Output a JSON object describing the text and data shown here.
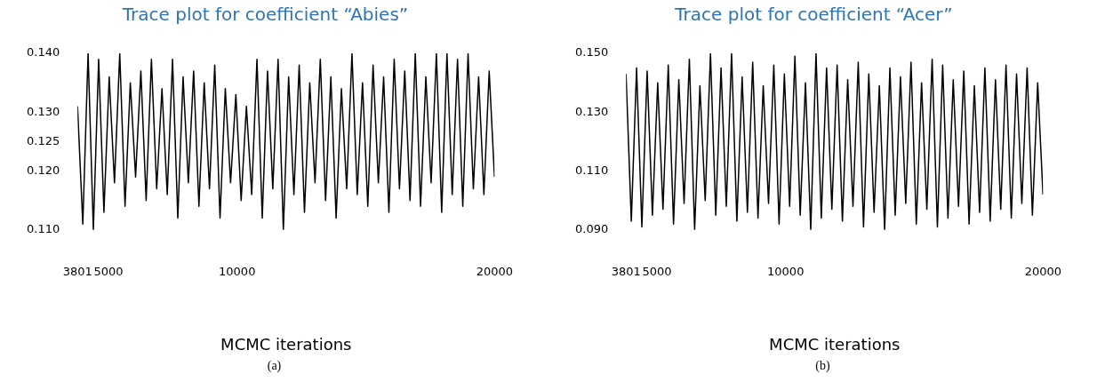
{
  "chart_data": [
    {
      "type": "line",
      "title": "Trace plot for coefficient “Abies”",
      "xlabel": "MCMC iterations",
      "annotations": [
        "(a)"
      ],
      "x": [
        3801,
        4006,
        4211,
        4416,
        4621,
        4826,
        5031,
        5236,
        5441,
        5646,
        5851,
        6056,
        6261,
        6466,
        6671,
        6876,
        7081,
        7286,
        7491,
        7696,
        7901,
        8106,
        8311,
        8516,
        8721,
        8926,
        9131,
        9336,
        9541,
        9746,
        9951,
        10156,
        10361,
        10566,
        10771,
        10976,
        11181,
        11386,
        11591,
        11796,
        12001,
        12206,
        12411,
        12616,
        12821,
        13026,
        13231,
        13436,
        13641,
        13846,
        14051,
        14256,
        14461,
        14666,
        14871,
        15076,
        15281,
        15486,
        15691,
        15896,
        16101,
        16306,
        16511,
        16716,
        16921,
        17126,
        17331,
        17536,
        17741,
        17946,
        18151,
        18356,
        18561,
        18766,
        18971,
        19176,
        19381,
        19586,
        19791,
        19996
      ],
      "series": [
        {
          "color": "#000000",
          "values": [
            0.131,
            0.111,
            0.14,
            0.11,
            0.139,
            0.113,
            0.136,
            0.118,
            0.14,
            0.114,
            0.135,
            0.119,
            0.137,
            0.115,
            0.139,
            0.117,
            0.134,
            0.116,
            0.139,
            0.112,
            0.136,
            0.118,
            0.137,
            0.114,
            0.135,
            0.117,
            0.138,
            0.112,
            0.134,
            0.118,
            0.133,
            0.115,
            0.131,
            0.116,
            0.139,
            0.112,
            0.137,
            0.117,
            0.139,
            0.11,
            0.136,
            0.116,
            0.138,
            0.113,
            0.135,
            0.118,
            0.139,
            0.115,
            0.136,
            0.112,
            0.134,
            0.117,
            0.14,
            0.116,
            0.135,
            0.114,
            0.138,
            0.118,
            0.136,
            0.113,
            0.139,
            0.117,
            0.137,
            0.115,
            0.14,
            0.114,
            0.136,
            0.118,
            0.14,
            0.113,
            0.14,
            0.116,
            0.139,
            0.114,
            0.14,
            0.117,
            0.136,
            0.116,
            0.137,
            0.119
          ]
        }
      ],
      "xlim": [
        3801,
        20000
      ],
      "xticks": [
        3801,
        5000,
        10000,
        20000
      ],
      "ylim": [
        0.11,
        0.14
      ],
      "yticks": [
        {
          "value": 0.11,
          "label": "0.110"
        },
        {
          "value": 0.12,
          "label": "0.120"
        },
        {
          "value": 0.125,
          "label": "0.125"
        },
        {
          "value": 0.13,
          "label": "0.130"
        },
        {
          "value": 0.14,
          "label": "0.140"
        }
      ],
      "grid": false,
      "legend": false
    },
    {
      "type": "line",
      "title": "Trace plot for coefficient “Acer”",
      "xlabel": "MCMC iterations",
      "annotations": [
        "(b)"
      ],
      "x": [
        3801,
        4006,
        4211,
        4416,
        4621,
        4826,
        5031,
        5236,
        5441,
        5646,
        5851,
        6056,
        6261,
        6466,
        6671,
        6876,
        7081,
        7286,
        7491,
        7696,
        7901,
        8106,
        8311,
        8516,
        8721,
        8926,
        9131,
        9336,
        9541,
        9746,
        9951,
        10156,
        10361,
        10566,
        10771,
        10976,
        11181,
        11386,
        11591,
        11796,
        12001,
        12206,
        12411,
        12616,
        12821,
        13026,
        13231,
        13436,
        13641,
        13846,
        14051,
        14256,
        14461,
        14666,
        14871,
        15076,
        15281,
        15486,
        15691,
        15896,
        16101,
        16306,
        16511,
        16716,
        16921,
        17126,
        17331,
        17536,
        17741,
        17946,
        18151,
        18356,
        18561,
        18766,
        18971,
        19176,
        19381,
        19586,
        19791,
        19996
      ],
      "series": [
        {
          "color": "#000000",
          "values": [
            0.143,
            0.093,
            0.145,
            0.091,
            0.144,
            0.095,
            0.14,
            0.097,
            0.146,
            0.092,
            0.141,
            0.099,
            0.148,
            0.09,
            0.139,
            0.1,
            0.15,
            0.095,
            0.145,
            0.098,
            0.15,
            0.093,
            0.142,
            0.096,
            0.147,
            0.094,
            0.139,
            0.099,
            0.146,
            0.092,
            0.143,
            0.098,
            0.149,
            0.095,
            0.14,
            0.09,
            0.15,
            0.094,
            0.145,
            0.097,
            0.146,
            0.093,
            0.141,
            0.098,
            0.147,
            0.091,
            0.143,
            0.096,
            0.139,
            0.09,
            0.145,
            0.095,
            0.142,
            0.099,
            0.147,
            0.092,
            0.14,
            0.097,
            0.148,
            0.091,
            0.146,
            0.094,
            0.141,
            0.098,
            0.144,
            0.092,
            0.139,
            0.096,
            0.145,
            0.093,
            0.141,
            0.097,
            0.146,
            0.094,
            0.143,
            0.099,
            0.145,
            0.095,
            0.14,
            0.102
          ]
        }
      ],
      "xlim": [
        3801,
        20000
      ],
      "xticks": [
        3801,
        5000,
        10000,
        20000
      ],
      "ylim": [
        0.09,
        0.15
      ],
      "yticks": [
        {
          "value": 0.09,
          "label": "0.090"
        },
        {
          "value": 0.11,
          "label": "0.110"
        },
        {
          "value": 0.13,
          "label": "0.130"
        },
        {
          "value": 0.15,
          "label": "0.150"
        }
      ],
      "grid": false,
      "legend": false
    }
  ]
}
